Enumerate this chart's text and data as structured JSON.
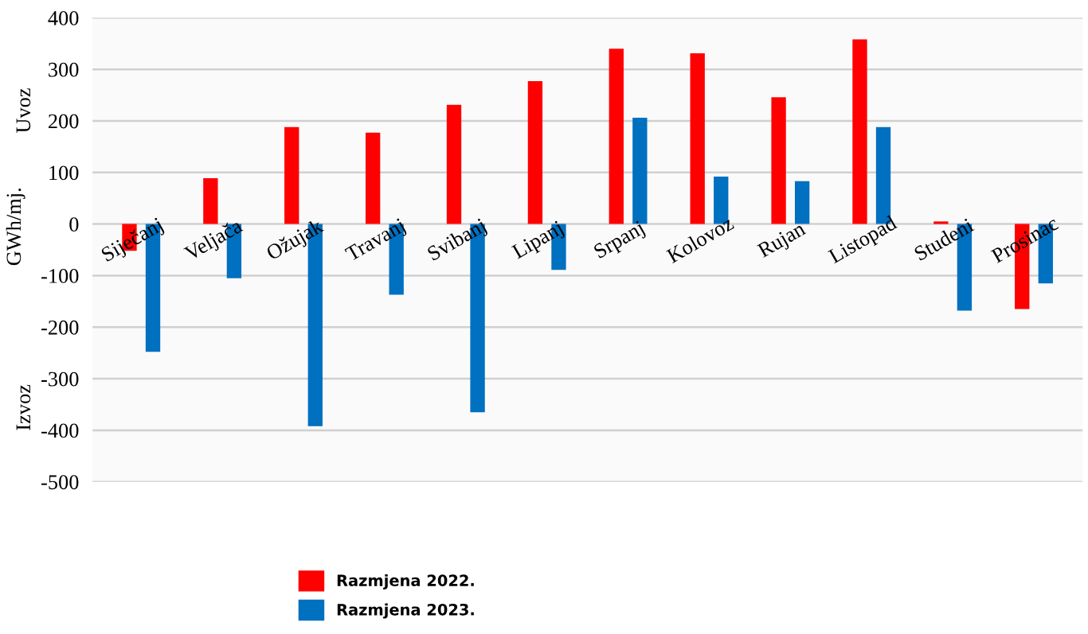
{
  "chart_data": {
    "type": "bar",
    "ylabel": "GWh/mj.",
    "annotations": [
      "Uvoz",
      "Izvoz"
    ],
    "categories": [
      "Siječanj",
      "Veljača",
      "Ožujak",
      "Travanj",
      "Svibanj",
      "Lipanj",
      "Srpanj",
      "Kolovoz",
      "Rujan",
      "Listopad",
      "Studeni",
      "Prosinac"
    ],
    "series": [
      {
        "name": "Razmjena 2022.",
        "color": "#ff0000",
        "values": [
          -52,
          89,
          188,
          177,
          231,
          277,
          340,
          331,
          246,
          358,
          5,
          -165
        ]
      },
      {
        "name": "Razmjena 2023.",
        "color": "#0070c0",
        "values": [
          -248,
          -105,
          -392,
          -137,
          -365,
          -89,
          206,
          92,
          83,
          188,
          -168,
          -115
        ]
      }
    ],
    "ylim": [
      -500,
      400
    ],
    "yticks": [
      -500,
      -400,
      -300,
      -200,
      -100,
      0,
      100,
      200,
      300,
      400
    ],
    "grid": "y",
    "legend": "bottom"
  }
}
